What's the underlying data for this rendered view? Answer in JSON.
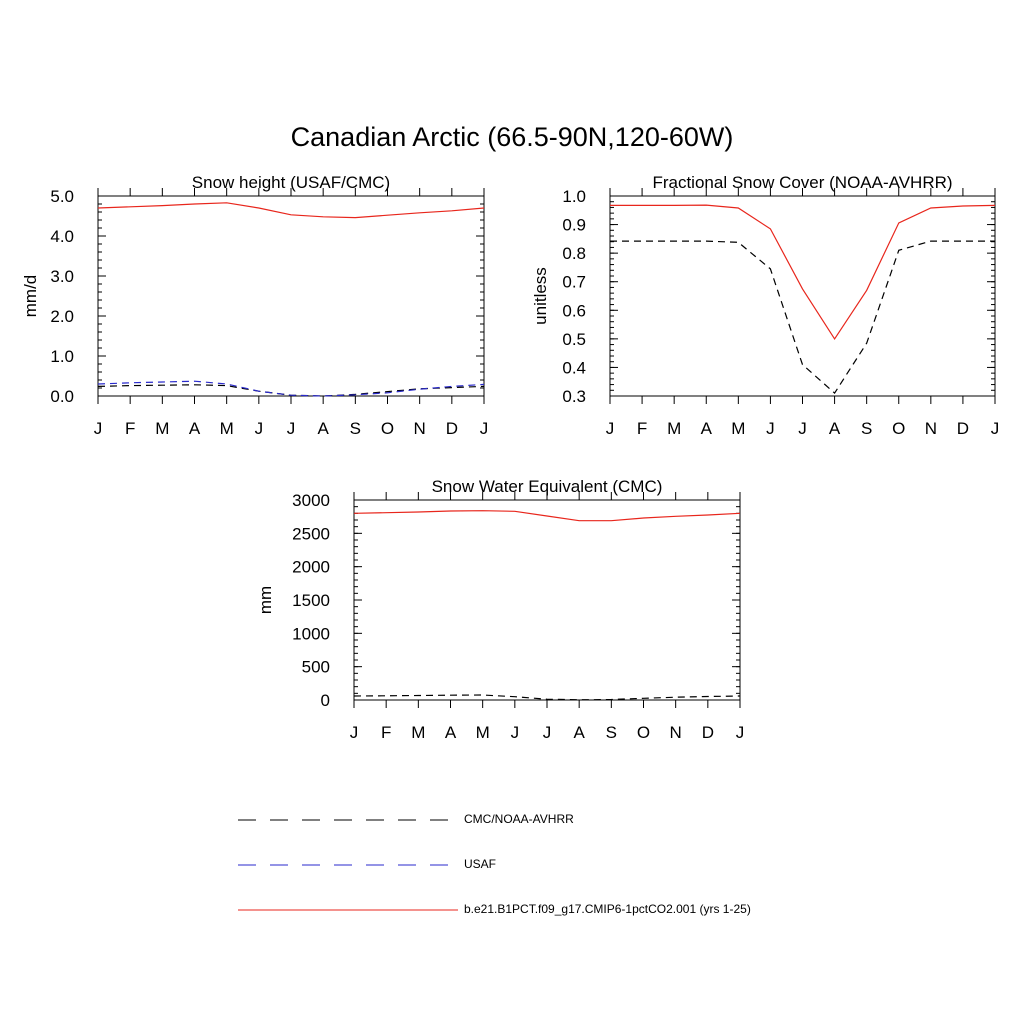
{
  "title": "Canadian Arctic (66.5-90N,120-60W)",
  "colors": {
    "model": "#e8261c",
    "obs": "#000000",
    "usaf": "#2a2acc"
  },
  "chart_data": [
    {
      "type": "line",
      "title": "Snow height (USAF/CMC)",
      "ylabel": "mm/d",
      "xlabel": "",
      "x": [
        "J",
        "F",
        "M",
        "A",
        "M",
        "J",
        "J",
        "A",
        "S",
        "O",
        "N",
        "D",
        "J"
      ],
      "ylim": [
        0,
        5
      ],
      "yticks": [
        0,
        1,
        2,
        3,
        4,
        5
      ],
      "ytick_labels": [
        "0.0",
        "1.0",
        "2.0",
        "3.0",
        "4.0",
        "5.0"
      ],
      "yminor": 0.2,
      "series": [
        {
          "name": "b.e21.B1PCT.f09_g17.CMIP6-1pctCO2.001 (yrs 1-25)",
          "style": "solid",
          "color": "#e8261c",
          "values": [
            4.7,
            4.73,
            4.76,
            4.8,
            4.83,
            4.7,
            4.53,
            4.48,
            4.46,
            4.52,
            4.58,
            4.63,
            4.7
          ]
        },
        {
          "name": "USAF",
          "style": "dashed",
          "color": "#2a2acc",
          "values": [
            0.3,
            0.33,
            0.35,
            0.37,
            0.3,
            0.12,
            0.02,
            0.0,
            0.03,
            0.08,
            0.17,
            0.24,
            0.29
          ]
        },
        {
          "name": "CMC/NOAA-AVHRR",
          "style": "dashed",
          "color": "#000000",
          "values": [
            0.24,
            0.26,
            0.27,
            0.28,
            0.26,
            0.12,
            0.02,
            0.0,
            0.04,
            0.11,
            0.18,
            0.21,
            0.24
          ]
        }
      ]
    },
    {
      "type": "line",
      "title": "Fractional Snow Cover (NOAA-AVHRR)",
      "ylabel": "unitless",
      "xlabel": "",
      "x": [
        "J",
        "F",
        "M",
        "A",
        "M",
        "J",
        "J",
        "A",
        "S",
        "O",
        "N",
        "D",
        "J"
      ],
      "ylim": [
        0.3,
        1.0
      ],
      "yticks": [
        0.3,
        0.4,
        0.5,
        0.6,
        0.7,
        0.8,
        0.9,
        1.0
      ],
      "ytick_labels": [
        "0.3",
        "0.4",
        "0.5",
        "0.6",
        "0.7",
        "0.8",
        "0.9",
        "1.0"
      ],
      "yminor": 0.02,
      "series": [
        {
          "name": "b.e21.B1PCT.f09_g17.CMIP6-1pctCO2.001 (yrs 1-25)",
          "style": "solid",
          "color": "#e8261c",
          "values": [
            0.967,
            0.967,
            0.967,
            0.968,
            0.958,
            0.885,
            0.675,
            0.5,
            0.67,
            0.906,
            0.958,
            0.965,
            0.967
          ]
        },
        {
          "name": "CMC/NOAA-AVHRR",
          "style": "dashed",
          "color": "#000000",
          "values": [
            0.842,
            0.842,
            0.842,
            0.842,
            0.838,
            0.745,
            0.41,
            0.31,
            0.485,
            0.81,
            0.842,
            0.842,
            0.842
          ]
        }
      ]
    },
    {
      "type": "line",
      "title": "Snow Water Equivalent (CMC)",
      "ylabel": "mm",
      "xlabel": "",
      "x": [
        "J",
        "F",
        "M",
        "A",
        "M",
        "J",
        "J",
        "A",
        "S",
        "O",
        "N",
        "D",
        "J"
      ],
      "ylim": [
        0,
        3000
      ],
      "yticks": [
        0,
        500,
        1000,
        1500,
        2000,
        2500,
        3000
      ],
      "ytick_labels": [
        "0",
        "500",
        "1000",
        "1500",
        "2000",
        "2500",
        "3000"
      ],
      "yminor": 100,
      "series": [
        {
          "name": "b.e21.B1PCT.f09_g17.CMIP6-1pctCO2.001 (yrs 1-25)",
          "style": "solid",
          "color": "#e8261c",
          "values": [
            2800,
            2810,
            2820,
            2835,
            2840,
            2830,
            2760,
            2690,
            2690,
            2730,
            2755,
            2775,
            2800
          ]
        },
        {
          "name": "CMC/NOAA-AVHRR",
          "style": "dashed",
          "color": "#000000",
          "values": [
            60,
            63,
            68,
            72,
            75,
            50,
            12,
            3,
            8,
            25,
            42,
            52,
            60
          ]
        }
      ]
    }
  ],
  "legend": [
    {
      "label": "CMC/NOAA-AVHRR",
      "style": "dashed",
      "color": "#000000"
    },
    {
      "label": "USAF",
      "style": "dashed",
      "color": "#2a2acc"
    },
    {
      "label": "b.e21.B1PCT.f09_g17.CMIP6-1pctCO2.001 (yrs 1-25)",
      "style": "solid",
      "color": "#e8261c"
    }
  ]
}
